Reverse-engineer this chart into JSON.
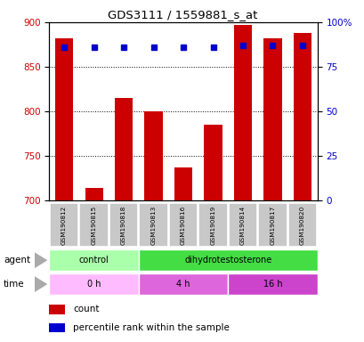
{
  "title": "GDS3111 / 1559881_s_at",
  "samples": [
    "GSM190812",
    "GSM190815",
    "GSM190818",
    "GSM190813",
    "GSM190816",
    "GSM190819",
    "GSM190814",
    "GSM190817",
    "GSM190820"
  ],
  "counts": [
    882,
    714,
    815,
    800,
    737,
    785,
    897,
    882,
    888
  ],
  "percentile_ranks": [
    86,
    86,
    86,
    86,
    86,
    86,
    87,
    87,
    87
  ],
  "ylim_left": [
    700,
    900
  ],
  "ylim_right": [
    0,
    100
  ],
  "yticks_left": [
    700,
    750,
    800,
    850,
    900
  ],
  "yticks_right": [
    0,
    25,
    50,
    75,
    100
  ],
  "ytick_labels_right": [
    "0",
    "25",
    "50",
    "75",
    "100%"
  ],
  "bar_color": "#cc0000",
  "dot_color": "#0000cc",
  "agent_groups": [
    {
      "label": "control",
      "start": 0,
      "end": 3,
      "color": "#aaffaa"
    },
    {
      "label": "dihydrotestosterone",
      "start": 3,
      "end": 9,
      "color": "#44dd44"
    }
  ],
  "time_groups": [
    {
      "label": "0 h",
      "start": 0,
      "end": 3,
      "color": "#ffbbff"
    },
    {
      "label": "4 h",
      "start": 3,
      "end": 6,
      "color": "#dd66dd"
    },
    {
      "label": "16 h",
      "start": 6,
      "end": 9,
      "color": "#cc44cc"
    }
  ],
  "legend_items": [
    {
      "label": "count",
      "color": "#cc0000"
    },
    {
      "label": "percentile rank within the sample",
      "color": "#0000cc"
    }
  ],
  "tick_label_color_left": "#cc0000",
  "tick_label_color_right": "#0000cc"
}
